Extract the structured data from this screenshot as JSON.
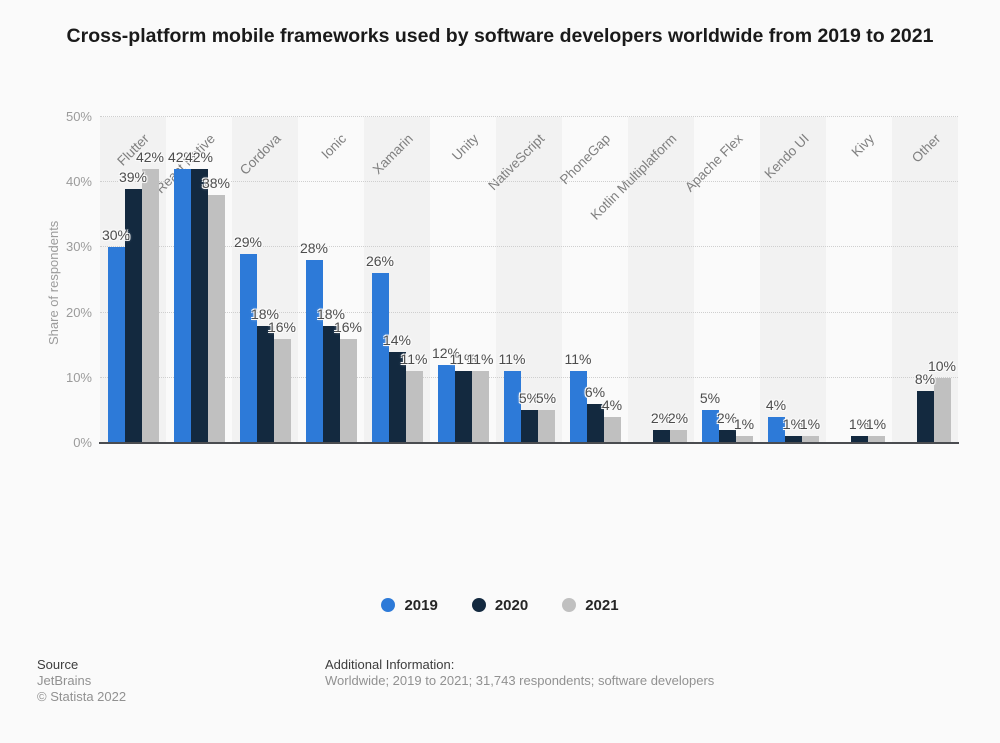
{
  "title": "Cross-platform mobile frameworks used by software developers worldwide from 2019 to 2021",
  "chart_data": {
    "type": "bar",
    "categories": [
      "Flutter",
      "React Native",
      "Cordova",
      "Ionic",
      "Xamarin",
      "Unity",
      "NativeScript",
      "PhoneGap",
      "Kotlin Multiplatform",
      "Apache Flex",
      "Kendo UI",
      "Kivy",
      "Other"
    ],
    "series": [
      {
        "name": "2019",
        "color": "#2d7ad8",
        "values": [
          30,
          42,
          29,
          28,
          26,
          12,
          11,
          11,
          null,
          5,
          4,
          null,
          null
        ]
      },
      {
        "name": "2020",
        "color": "#13293f",
        "values": [
          39,
          42,
          18,
          18,
          14,
          11,
          5,
          6,
          2,
          2,
          1,
          1,
          8
        ]
      },
      {
        "name": "2021",
        "color": "#c0c0c0",
        "values": [
          42,
          38,
          16,
          16,
          11,
          11,
          5,
          4,
          2,
          1,
          1,
          1,
          10
        ]
      }
    ],
    "title": "Cross-platform mobile frameworks used by software developers worldwide from 2019 to 2021",
    "xlabel": "",
    "ylabel": "Share of respondents",
    "ylim": [
      0,
      50
    ],
    "yticks": [
      "0%",
      "10%",
      "20%",
      "30%",
      "40%",
      "50%"
    ],
    "value_label_suffix": "%",
    "grid": "horizontal-dotted",
    "legend_position": "bottom"
  },
  "footer": {
    "source_label": "Source",
    "source_name": "JetBrains",
    "copyright": "© Statista 2022",
    "additional_info_label": "Additional Information:",
    "additional_info": "Worldwide; 2019 to 2021; 31,743 respondents; software developers"
  }
}
